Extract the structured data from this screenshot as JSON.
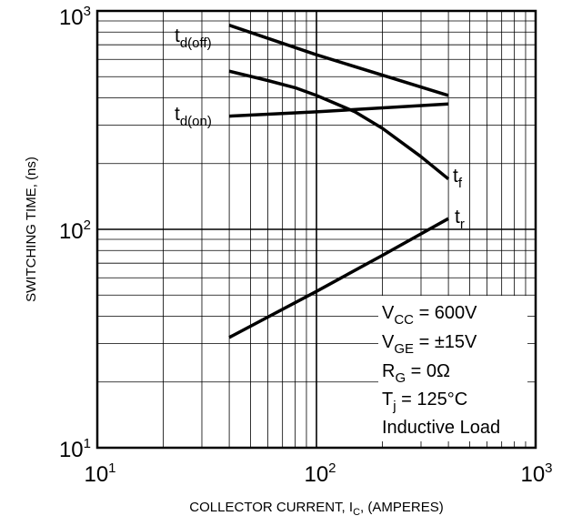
{
  "chart_data": {
    "type": "line",
    "x_scale": "log",
    "y_scale": "log",
    "xlim": [
      10,
      1000
    ],
    "ylim": [
      10,
      1000
    ],
    "grid": true,
    "xlabel": {
      "main": "COLLECTOR CURRENT, I",
      "sub": "C",
      "tail": ", (AMPERES)"
    },
    "ylabel": "SWITCHING TIME, (ns)",
    "x_ticks": [
      {
        "base": "10",
        "exp": "1"
      },
      {
        "base": "10",
        "exp": "2"
      },
      {
        "base": "10",
        "exp": "3"
      }
    ],
    "y_ticks": [
      {
        "base": "10",
        "exp": "1"
      },
      {
        "base": "10",
        "exp": "2"
      },
      {
        "base": "10",
        "exp": "3"
      }
    ],
    "series": [
      {
        "name": "td(off)",
        "label_main": "t",
        "label_sub": "d(off)",
        "x": [
          40,
          100,
          400
        ],
        "y": [
          860,
          630,
          410
        ]
      },
      {
        "name": "td(on)",
        "label_main": "t",
        "label_sub": "d(on)",
        "x": [
          40,
          100,
          400
        ],
        "y": [
          330,
          345,
          375
        ]
      },
      {
        "name": "tf",
        "label_main": "t",
        "label_sub": "f",
        "x": [
          40,
          60,
          80,
          100,
          150,
          200,
          300,
          400
        ],
        "y": [
          530,
          480,
          445,
          410,
          345,
          290,
          215,
          170
        ]
      },
      {
        "name": "tr",
        "label_main": "t",
        "label_sub": "r",
        "x": [
          40,
          100,
          200,
          400
        ],
        "y": [
          32,
          52,
          76,
          112
        ]
      }
    ],
    "conditions": [
      {
        "main": "V",
        "sub": "CC",
        "tail": " = 600V"
      },
      {
        "main": "V",
        "sub": "GE",
        "tail": " = ±15V"
      },
      {
        "main": "R",
        "sub": "G",
        "tail": " = 0Ω"
      },
      {
        "main": "T",
        "sub": "j",
        "tail": " = 125°C"
      },
      {
        "main": "Inductive Load",
        "sub": "",
        "tail": ""
      }
    ]
  }
}
